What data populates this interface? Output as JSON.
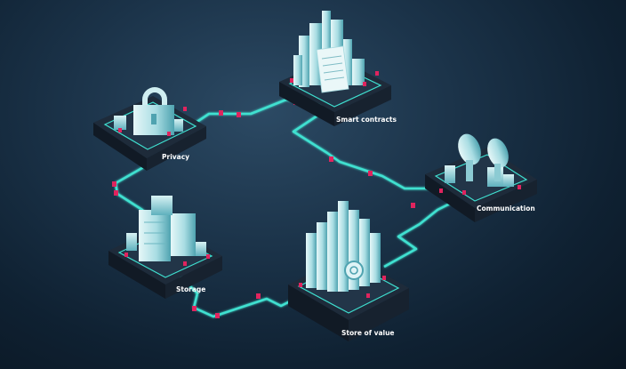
{
  "nodes": [
    {
      "id": "privacy",
      "label": "Privacy",
      "icon": "padlock-icon"
    },
    {
      "id": "smart-contracts",
      "label": "Smart contracts",
      "icon": "document-icon"
    },
    {
      "id": "communication",
      "label": "Communication",
      "icon": "satellite-dish-icon"
    },
    {
      "id": "storage",
      "label": "Storage",
      "icon": "storage-icon"
    },
    {
      "id": "store-of-value",
      "label": "Store of value",
      "icon": "coin-icon"
    }
  ],
  "colors": {
    "path": "#3fe0d0",
    "platform_top": "#1f2d3d",
    "platform_side": "#141d28",
    "building": "#bfe6ea",
    "building_shade": "#5fb5c0",
    "accent": "#e0245e"
  }
}
